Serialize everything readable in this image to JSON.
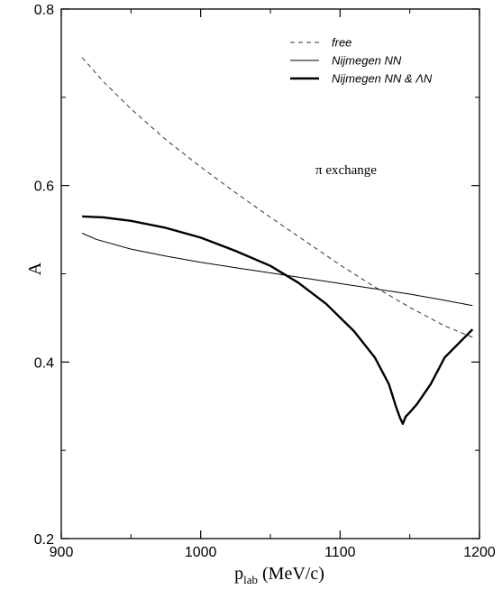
{
  "chart_data": {
    "type": "line",
    "title": "",
    "xlabel": "p",
    "xlabel_sub": "lab",
    "xlabel_unit": " (MeV/c)",
    "ylabel": "A",
    "xlim": [
      900,
      1200
    ],
    "ylim": [
      0.2,
      0.8
    ],
    "xticks": [
      900,
      1000,
      1100,
      1200
    ],
    "yticks": [
      0.2,
      0.4,
      0.6,
      0.8
    ],
    "xtick_labels": [
      "900",
      "1000",
      "1100",
      "1200"
    ],
    "ytick_labels": [
      "0.2",
      "0.4",
      "0.6",
      "0.8"
    ],
    "grid": false,
    "legend_position": "top-right",
    "annotation": "π exchange",
    "series": [
      {
        "name": "free",
        "style": "dashed",
        "color": "#333333",
        "x": [
          915,
          930,
          950,
          975,
          1000,
          1025,
          1050,
          1075,
          1100,
          1125,
          1150,
          1175,
          1195
        ],
        "y": [
          0.745,
          0.718,
          0.687,
          0.652,
          0.621,
          0.592,
          0.564,
          0.537,
          0.51,
          0.485,
          0.462,
          0.441,
          0.428
        ]
      },
      {
        "name": "Nijmegen NN",
        "style": "thin",
        "color": "#000000",
        "x": [
          915,
          925,
          950,
          975,
          1000,
          1025,
          1050,
          1075,
          1100,
          1125,
          1150,
          1175,
          1195
        ],
        "y": [
          0.546,
          0.539,
          0.528,
          0.52,
          0.513,
          0.507,
          0.501,
          0.495,
          0.489,
          0.483,
          0.477,
          0.47,
          0.464
        ]
      },
      {
        "name": "Nijmegen NN & ΛN",
        "style": "thick",
        "color": "#000000",
        "x": [
          915,
          930,
          950,
          975,
          1000,
          1025,
          1050,
          1070,
          1090,
          1110,
          1125,
          1135,
          1140,
          1143,
          1145,
          1147,
          1150,
          1155,
          1165,
          1175,
          1195
        ],
        "y": [
          0.565,
          0.564,
          0.56,
          0.552,
          0.541,
          0.526,
          0.509,
          0.49,
          0.466,
          0.435,
          0.405,
          0.375,
          0.35,
          0.337,
          0.33,
          0.338,
          0.343,
          0.352,
          0.375,
          0.405,
          0.437
        ]
      }
    ]
  }
}
